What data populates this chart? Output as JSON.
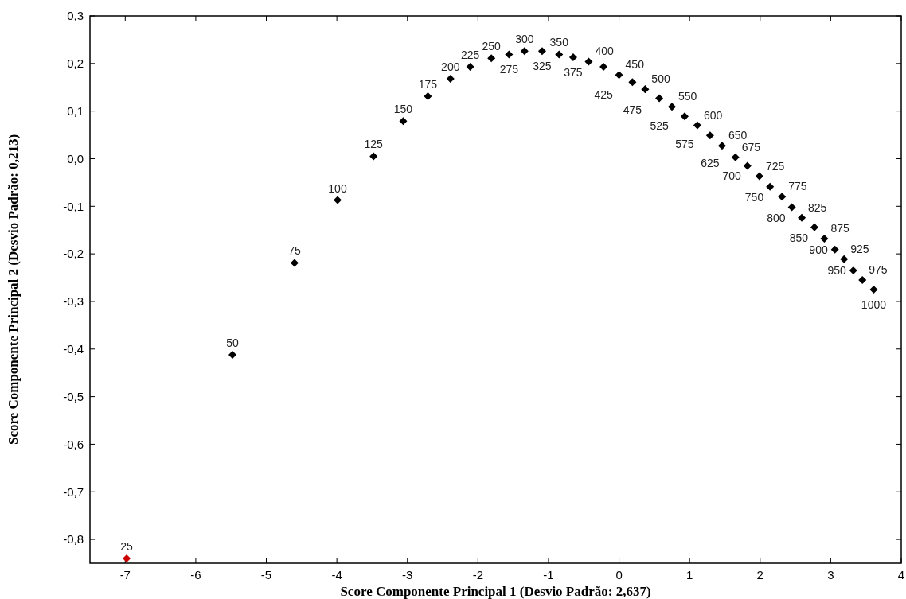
{
  "chart_data": {
    "type": "scatter",
    "xlabel": "Score Componente Principal 1 (Desvio Padrão: 2,637)",
    "ylabel": "Score Componente Principal 2 (Desvio Padrão: 0,213)",
    "xlim": [
      -7.5,
      4
    ],
    "xticks": [
      -7,
      -6,
      -5,
      -4,
      -3,
      -2,
      -1,
      0,
      1,
      2,
      3,
      4
    ],
    "ylim": [
      -0.85,
      0.3
    ],
    "yticks": [
      {
        "value": 0.3,
        "label": "0,3"
      },
      {
        "value": 0.2,
        "label": "0,2"
      },
      {
        "value": 0.1,
        "label": "0,1"
      },
      {
        "value": 0,
        "label": "0,0"
      },
      {
        "value": -0.1,
        "label": "-0,1"
      },
      {
        "value": -0.2,
        "label": "-0,2"
      },
      {
        "value": -0.3,
        "label": "-0,3"
      },
      {
        "value": -0.4,
        "label": "-0,4"
      },
      {
        "value": -0.5,
        "label": "-0,5"
      },
      {
        "value": -0.6,
        "label": "-0,6"
      },
      {
        "value": -0.7,
        "label": "-0,7"
      },
      {
        "value": -0.8,
        "label": "-0,8"
      }
    ],
    "grid": false,
    "marker": "diamond",
    "series": [
      {
        "color": "#cc0000",
        "x": [
          -6.98
        ],
        "values": [
          -0.84
        ]
      },
      {
        "color": "#000000",
        "x": [
          -5.48,
          -4.6,
          -3.99,
          -3.48,
          -3.06,
          -2.71,
          -2.39,
          -2.11,
          -1.81,
          -1.56,
          -1.34,
          -1.09,
          -0.85,
          -0.65,
          -0.43,
          -0.22,
          0.0,
          0.19,
          0.37,
          0.57,
          0.75,
          0.93,
          1.11,
          1.29,
          1.46,
          1.65,
          1.82,
          1.99,
          2.14,
          2.31,
          2.45,
          2.59,
          2.77,
          2.91,
          3.06,
          3.19,
          3.32,
          3.45,
          3.61
        ],
        "values": [
          -0.412,
          -0.219,
          -0.087,
          0.005,
          0.079,
          0.131,
          0.168,
          0.193,
          0.211,
          0.219,
          0.226,
          0.226,
          0.219,
          0.213,
          0.204,
          0.193,
          0.176,
          0.161,
          0.146,
          0.127,
          0.109,
          0.089,
          0.07,
          0.049,
          0.027,
          0.003,
          -0.015,
          -0.037,
          -0.059,
          -0.08,
          -0.102,
          -0.124,
          -0.144,
          -0.168,
          -0.191,
          -0.211,
          -0.235,
          -0.255,
          -0.275
        ]
      }
    ],
    "annotations": [
      {
        "text": "25",
        "x": -6.98,
        "y": -0.84
      },
      {
        "text": "50",
        "x": -5.48,
        "y": -0.412
      },
      {
        "text": "75",
        "x": -4.6,
        "y": -0.219
      },
      {
        "text": "100",
        "x": -3.99,
        "y": -0.087
      },
      {
        "text": "125",
        "x": -3.48,
        "y": 0.005
      },
      {
        "text": "150",
        "x": -3.06,
        "y": 0.079
      },
      {
        "text": "175",
        "x": -2.71,
        "y": 0.131
      },
      {
        "text": "200",
        "x": -2.39,
        "y": 0.168
      },
      {
        "text": "225",
        "x": -2.11,
        "y": 0.193
      },
      {
        "text": "250",
        "x": -1.81,
        "y": 0.211
      },
      {
        "text": "275",
        "x": -1.56,
        "y": 0.219
      },
      {
        "text": "300",
        "x": -1.34,
        "y": 0.226
      },
      {
        "text": "325",
        "x": -1.09,
        "y": 0.226
      },
      {
        "text": "350",
        "x": -0.85,
        "y": 0.219
      },
      {
        "text": "375",
        "x": -0.65,
        "y": 0.213
      },
      {
        "text": "400",
        "x": -0.43,
        "y": 0.204
      },
      {
        "text": "425",
        "x": -0.22,
        "y": 0.193
      },
      {
        "text": "450",
        "x": 0.0,
        "y": 0.176
      },
      {
        "text": "475",
        "x": 0.19,
        "y": 0.161
      },
      {
        "text": "500",
        "x": 0.37,
        "y": 0.146
      },
      {
        "text": "525",
        "x": 0.57,
        "y": 0.127
      },
      {
        "text": "550",
        "x": 0.75,
        "y": 0.109
      },
      {
        "text": "575",
        "x": 0.93,
        "y": 0.089
      },
      {
        "text": "600",
        "x": 1.11,
        "y": 0.07
      },
      {
        "text": "625",
        "x": 1.29,
        "y": 0.049
      },
      {
        "text": "650",
        "x": 1.46,
        "y": 0.027
      },
      {
        "text": "675",
        "x": 1.65,
        "y": 0.003
      },
      {
        "text": "700",
        "x": 1.82,
        "y": -0.015
      },
      {
        "text": "725",
        "x": 1.99,
        "y": -0.037
      },
      {
        "text": "750",
        "x": 2.14,
        "y": -0.059
      },
      {
        "text": "775",
        "x": 2.31,
        "y": -0.08
      },
      {
        "text": "800",
        "x": 2.45,
        "y": -0.102
      },
      {
        "text": "825",
        "x": 2.59,
        "y": -0.124
      },
      {
        "text": "850",
        "x": 2.77,
        "y": -0.144
      },
      {
        "text": "875",
        "x": 2.91,
        "y": -0.168
      },
      {
        "text": "900",
        "x": 3.06,
        "y": -0.191
      },
      {
        "text": "925",
        "x": 3.19,
        "y": -0.211
      },
      {
        "text": "950",
        "x": 3.32,
        "y": -0.235
      },
      {
        "text": "975",
        "x": 3.45,
        "y": -0.255
      },
      {
        "text": "1000",
        "x": 3.61,
        "y": -0.275
      }
    ]
  }
}
